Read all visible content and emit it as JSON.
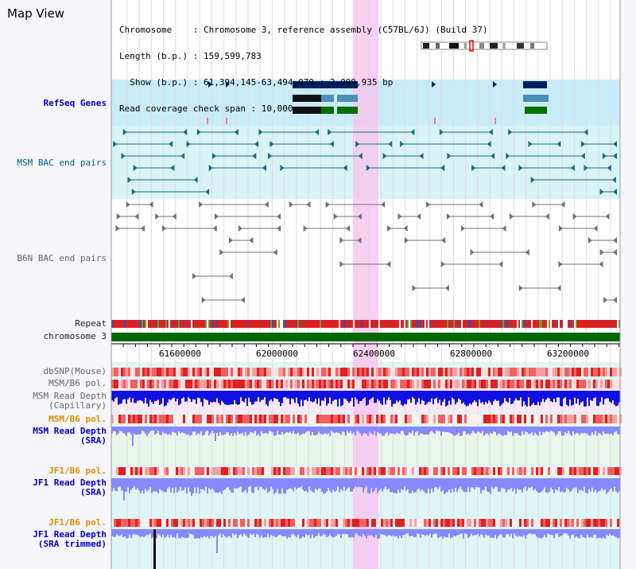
{
  "header": {
    "title": "Map View",
    "lines": [
      "Chromosome    : Chromosome 3, reference assembly (C57BL/6J) (Build 37)",
      "Length (b.p.) : 159,599,783",
      "  Show (b.p.) : 61,394,145-63,494,079 : 2,099,935 bp",
      "Read coverage check span : 10,000"
    ]
  },
  "tracks": {
    "refseq": "RefSeq Genes",
    "msm_bac": "MSM BAC end pairs",
    "b6n_bac": "B6N BAC end pairs",
    "repeat": "Repeat",
    "chromosome": "chromosome 3",
    "dbsnp": "dbSNP(Mouse)",
    "msm_b6_pol_1": "MSM/B6 pol.",
    "msm_depth_cap_1": "MSM Read Depth",
    "msm_depth_cap_2": "(Capillary)",
    "msm_b6_pol_2": "MSM/B6 pol.",
    "msm_depth_sra_1": "MSM Read Depth",
    "msm_depth_sra_2": "(SRA)",
    "jf1_b6_pol_1": "JF1/B6 pol.",
    "jf1_depth_sra_1": "JF1 Read Depth",
    "jf1_depth_sra_2": "(SRA)",
    "jf1_b6_pol_2": "JF1/B6 pol.",
    "jf1_depth_trim_1": "JF1 Read Depth",
    "jf1_depth_trim_2": "(SRA trimmed)"
  },
  "axis": {
    "ticks": [
      "61600000",
      "62000000",
      "62400000",
      "62800000",
      "63200000"
    ]
  },
  "colors": {
    "refseq_bg": "#c8ecf8",
    "msm_bg": "#d8f4f4",
    "highlight": "#f6c8f0",
    "gene_dark": "#002060",
    "gene_mid": "#4a90b8",
    "gene_green": "#007000",
    "bac_teal": "#1a6a80",
    "bac_gray": "#707070",
    "chrom_green": "#006800",
    "depth_blue": "#1010e0",
    "depth_lavender": "#8888ff"
  }
}
